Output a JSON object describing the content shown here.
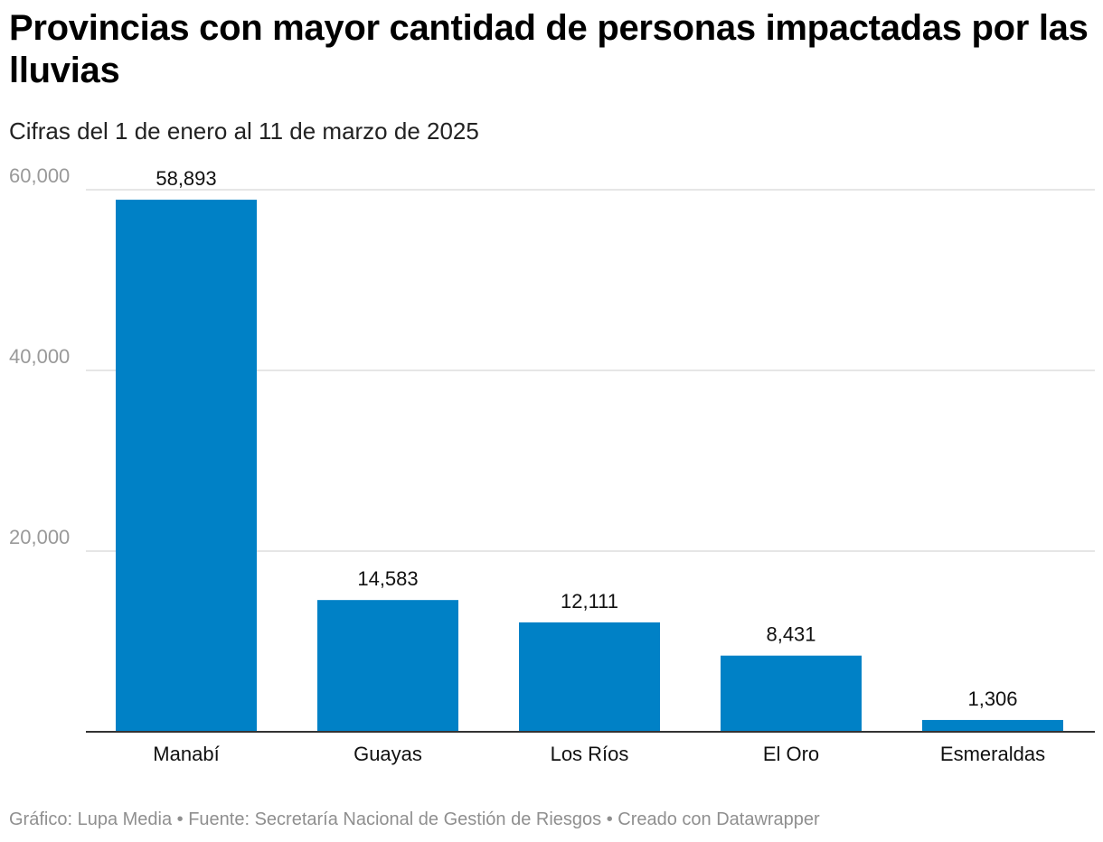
{
  "chart_data": {
    "type": "bar",
    "title": "Provincias con mayor cantidad de personas impactadas por las lluvias",
    "subtitle": "Cifras del 1 de enero al 11 de marzo de 2025",
    "categories": [
      "Manabí",
      "Guayas",
      "Los Ríos",
      "El Oro",
      "Esmeraldas"
    ],
    "values": [
      58893,
      14583,
      12111,
      8431,
      1306
    ],
    "value_labels": [
      "58,893",
      "14,583",
      "12,111",
      "8,431",
      "1,306"
    ],
    "yticks": [
      20000,
      40000,
      60000
    ],
    "ytick_labels": [
      "20,000",
      "40,000",
      "60,000"
    ],
    "ylim": [
      0,
      60000
    ],
    "xlabel": "",
    "ylabel": "",
    "grid": true,
    "bar_color": "#0081C6"
  },
  "footer": {
    "text": "Gráfico: Lupa Media • Fuente: Secretaría Nacional de Gestión de Riesgos • Creado con Datawrapper"
  }
}
